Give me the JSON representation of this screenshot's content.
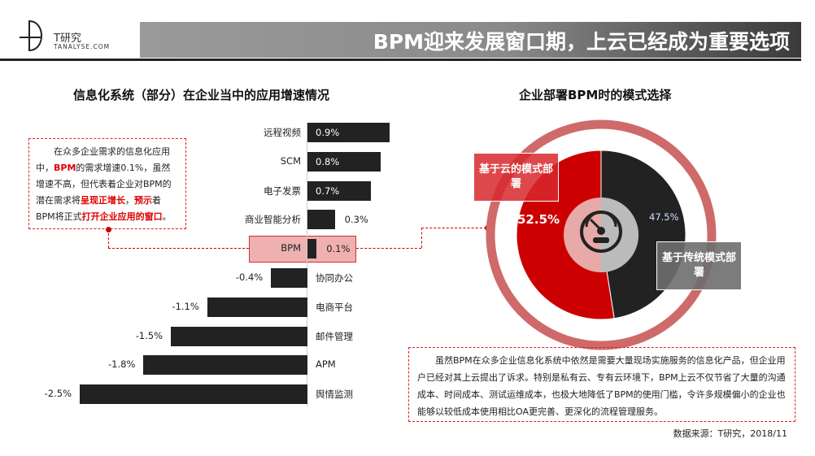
{
  "logo": {
    "cn": "T研究",
    "en": "TANALYSE.COM"
  },
  "header": {
    "title": "BPM迎来发展窗口期，上云已经成为重要选项"
  },
  "left": {
    "subtitle": "信息化系统（部分）在企业当中的应用增速情况",
    "note": {
      "parts": [
        "在众多企业需求的信息化应用中，",
        "BPM",
        "的需求增速0.1%，虽然增速不高，但代表着企业对BPM的潜在需求将",
        "呈现正增长",
        "，",
        "预示",
        "着BPM将正式",
        "打开企业应用的窗口",
        "。"
      ]
    }
  },
  "right": {
    "subtitle": "企业部署BPM时的模式选择",
    "description": "虽然BPM在众多企业信息化系统中依然是需要大量现场实施服务的信息化产品，但企业用户已经对其上云提出了诉求。特别是私有云、专有云环境下，BPM上云不仅节省了大量的沟通成本、时间成本、测试运维成本，也极大地降低了BPM的使用门槛，令许多规模偏小的企业也能够以较低成本使用相比OA更完善、更深化的流程管理服务。",
    "source": "数据来源：T研究，2018/11"
  },
  "colors": {
    "red": "#cc0000",
    "dark": "#222222",
    "ring": "#cf6a6a"
  },
  "chart_data": [
    {
      "type": "bar",
      "orientation": "horizontal",
      "title": "信息化系统（部分）在企业当中的应用增速情况",
      "categories": [
        "远程视频",
        "SCM",
        "电子发票",
        "商业智能分析",
        "BPM",
        "协同办公",
        "电商平台",
        "邮件管理",
        "APM",
        "舆情监测"
      ],
      "values": [
        0.9,
        0.8,
        0.7,
        0.3,
        0.1,
        -0.4,
        -1.1,
        -1.5,
        -1.8,
        -2.5
      ],
      "labels": [
        "0.9%",
        "0.8%",
        "0.7%",
        "0.3%",
        "0.1%",
        "-0.4%",
        "-1.1%",
        "-1.5%",
        "-1.8%",
        "-2.5%"
      ],
      "highlight": "BPM",
      "unit": "%"
    },
    {
      "type": "pie",
      "title": "企业部署BPM时的模式选择",
      "slices": [
        {
          "name": "基于云的模式部署",
          "value": 52.5,
          "label": "52.5%",
          "color": "#cc0000"
        },
        {
          "name": "基于传统模式部署",
          "value": 47.5,
          "label": "47.5%",
          "color": "#222222"
        }
      ]
    }
  ]
}
